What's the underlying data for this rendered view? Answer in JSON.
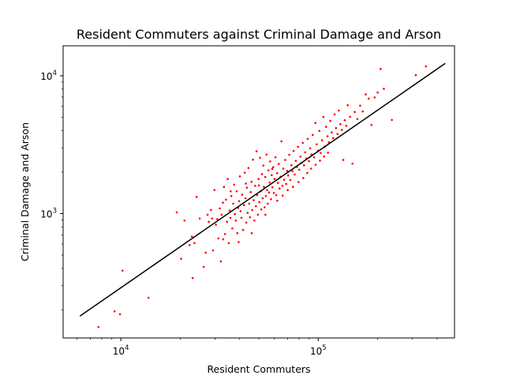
{
  "chart_data": {
    "type": "scatter",
    "title": "Resident Commuters against Criminal Damage and Arson",
    "xlabel": "Resident Commuters",
    "ylabel": "Criminal Damage and Arson",
    "xscale": "log",
    "yscale": "log",
    "xlim": [
      5100,
      490000
    ],
    "ylim": [
      125,
      16500
    ],
    "grid": false,
    "x_ticks": [
      {
        "value": 10000,
        "base": "10",
        "exp": "4"
      },
      {
        "value": 100000,
        "base": "10",
        "exp": "5"
      }
    ],
    "y_ticks": [
      {
        "value": 1000,
        "base": "10",
        "exp": "3"
      },
      {
        "value": 10000,
        "base": "10",
        "exp": "4"
      }
    ],
    "point_color": "#ff0000",
    "line_color": "#000000",
    "fit_line": {
      "x": [
        6200,
        440000
      ],
      "y": [
        180,
        12300
      ]
    },
    "series": [
      {
        "points": [
          [
            7700,
            150
          ],
          [
            9300,
            195
          ],
          [
            9900,
            186
          ],
          [
            10200,
            385
          ],
          [
            13800,
            245
          ],
          [
            19200,
            1020
          ],
          [
            20200,
            470
          ],
          [
            21000,
            890
          ],
          [
            22300,
            590
          ],
          [
            22900,
            680
          ],
          [
            23100,
            340
          ],
          [
            23600,
            610
          ],
          [
            24200,
            1320
          ],
          [
            25100,
            920
          ],
          [
            26300,
            410
          ],
          [
            26900,
            520
          ],
          [
            27500,
            980
          ],
          [
            27900,
            870
          ],
          [
            28600,
            1060
          ],
          [
            29300,
            540
          ],
          [
            29800,
            1480
          ],
          [
            30300,
            830
          ],
          [
            30800,
            910
          ],
          [
            31200,
            660
          ],
          [
            31700,
            1090
          ],
          [
            32100,
            450
          ],
          [
            32400,
            980
          ],
          [
            32900,
            1200
          ],
          [
            33300,
            1560
          ],
          [
            33700,
            710
          ],
          [
            34100,
            1260
          ],
          [
            34500,
            870
          ],
          [
            34800,
            1780
          ],
          [
            35200,
            610
          ],
          [
            35600,
            1050
          ],
          [
            35900,
            930
          ],
          [
            36300,
            1340
          ],
          [
            36700,
            780
          ],
          [
            37100,
            1180
          ],
          [
            37500,
            1620
          ],
          [
            37800,
            990
          ],
          [
            38200,
            890
          ],
          [
            38600,
            1450
          ],
          [
            38900,
            720
          ],
          [
            39300,
            1100
          ],
          [
            39700,
            1230
          ],
          [
            40100,
            1860
          ],
          [
            40400,
            1040
          ],
          [
            40800,
            930
          ],
          [
            41200,
            1370
          ],
          [
            41600,
            760
          ],
          [
            42000,
            1150
          ],
          [
            42400,
            1980
          ],
          [
            42800,
            1290
          ],
          [
            43200,
            860
          ],
          [
            43500,
            1540
          ],
          [
            43900,
            1010
          ],
          [
            44300,
            2140
          ],
          [
            44700,
            1180
          ],
          [
            45100,
            940
          ],
          [
            45500,
            1430
          ],
          [
            45900,
            1700
          ],
          [
            46300,
            1060
          ],
          [
            46700,
            2460
          ],
          [
            47100,
            1250
          ],
          [
            47500,
            890
          ],
          [
            47900,
            1590
          ],
          [
            48300,
            1130
          ],
          [
            48700,
            2830
          ],
          [
            49100,
            1360
          ],
          [
            49500,
            980
          ],
          [
            49900,
            1780
          ],
          [
            50300,
            1210
          ],
          [
            50700,
            2540
          ],
          [
            51100,
            1450
          ],
          [
            51500,
            1070
          ],
          [
            51900,
            1930
          ],
          [
            52300,
            1290
          ],
          [
            52700,
            2230
          ],
          [
            53100,
            1560
          ],
          [
            53500,
            1110
          ],
          [
            53900,
            1840
          ],
          [
            54300,
            1340
          ],
          [
            54700,
            2680
          ],
          [
            55100,
            1480
          ],
          [
            55500,
            1180
          ],
          [
            55900,
            2060
          ],
          [
            56300,
            1420
          ],
          [
            56700,
            1680
          ],
          [
            57100,
            2390
          ],
          [
            57600,
            1270
          ],
          [
            58100,
            1900
          ],
          [
            58600,
            1550
          ],
          [
            59100,
            2170
          ],
          [
            59600,
            1410
          ],
          [
            60100,
            1780
          ],
          [
            60700,
            2560
          ],
          [
            61300,
            1360
          ],
          [
            61900,
            1960
          ],
          [
            62500,
            1670
          ],
          [
            63100,
            2290
          ],
          [
            63700,
            1520
          ],
          [
            64400,
            1850
          ],
          [
            65100,
            3340
          ],
          [
            65800,
            1590
          ],
          [
            66500,
            2120
          ],
          [
            67200,
            1760
          ],
          [
            68000,
            2450
          ],
          [
            68800,
            1640
          ],
          [
            69600,
            2040
          ],
          [
            70400,
            1890
          ],
          [
            71300,
            2670
          ],
          [
            72200,
            1750
          ],
          [
            73100,
            2240
          ],
          [
            74000,
            2030
          ],
          [
            75000,
            2850
          ],
          [
            76000,
            1920
          ],
          [
            77000,
            2410
          ],
          [
            78000,
            2180
          ],
          [
            79000,
            3050
          ],
          [
            80100,
            2080
          ],
          [
            81200,
            2590
          ],
          [
            82300,
            2330
          ],
          [
            83500,
            3260
          ],
          [
            84700,
            2240
          ],
          [
            85900,
            2780
          ],
          [
            87100,
            2510
          ],
          [
            88400,
            3480
          ],
          [
            89700,
            2400
          ],
          [
            91000,
            2970
          ],
          [
            92400,
            2680
          ],
          [
            93800,
            3720
          ],
          [
            95200,
            2560
          ],
          [
            96700,
            4550
          ],
          [
            98200,
            3180
          ],
          [
            99700,
            2860
          ],
          [
            101300,
            3980
          ],
          [
            102900,
            2750
          ],
          [
            104500,
            3400
          ],
          [
            106200,
            5020
          ],
          [
            107900,
            3060
          ],
          [
            109600,
            4260
          ],
          [
            111400,
            3640
          ],
          [
            113200,
            3290
          ],
          [
            115100,
            4700
          ],
          [
            117000,
            3880
          ],
          [
            119000,
            3530
          ],
          [
            121000,
            5240
          ],
          [
            123000,
            4170
          ],
          [
            125100,
            3780
          ],
          [
            127200,
            5590
          ],
          [
            129400,
            4450
          ],
          [
            131600,
            4050
          ],
          [
            133900,
            2450
          ],
          [
            136200,
            4750
          ],
          [
            138600,
            4330
          ],
          [
            141000,
            6110
          ],
          [
            145000,
            5040
          ],
          [
            149000,
            2300
          ],
          [
            153000,
            5460
          ],
          [
            158000,
            4850
          ],
          [
            163000,
            6070
          ],
          [
            168000,
            5510
          ],
          [
            174000,
            7320
          ],
          [
            180000,
            6830
          ],
          [
            186000,
            4400
          ],
          [
            193000,
            6960
          ],
          [
            200000,
            7560
          ],
          [
            207000,
            11200
          ],
          [
            215000,
            8040
          ],
          [
            236000,
            4780
          ],
          [
            312000,
            10100
          ],
          [
            351000,
            11700
          ],
          [
            29000,
            920
          ],
          [
            33000,
            650
          ],
          [
            36000,
            1450
          ],
          [
            39500,
            620
          ],
          [
            43000,
            1650
          ],
          [
            46000,
            720
          ],
          [
            50000,
            1600
          ],
          [
            54000,
            980
          ],
          [
            58500,
            2110
          ],
          [
            62000,
            1240
          ],
          [
            66000,
            1350
          ],
          [
            70000,
            1480
          ],
          [
            74500,
            1560
          ],
          [
            79500,
            1690
          ],
          [
            84000,
            1810
          ],
          [
            88000,
            1970
          ],
          [
            92000,
            2120
          ],
          [
            97000,
            2260
          ],
          [
            102000,
            2420
          ],
          [
            107000,
            2590
          ],
          [
            112000,
            2770
          ]
        ]
      }
    ]
  }
}
